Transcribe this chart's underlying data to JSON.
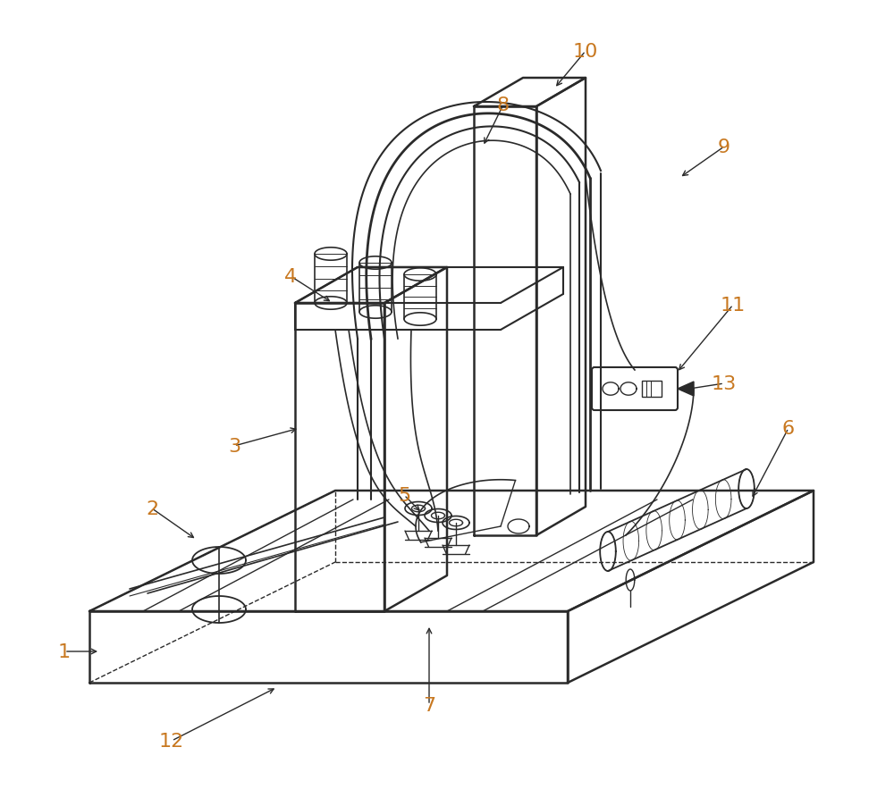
{
  "bg_color": "#ffffff",
  "line_color": "#2a2a2a",
  "label_color": "#c87820",
  "figsize": [
    10.0,
    9.03
  ],
  "dpi": 100
}
